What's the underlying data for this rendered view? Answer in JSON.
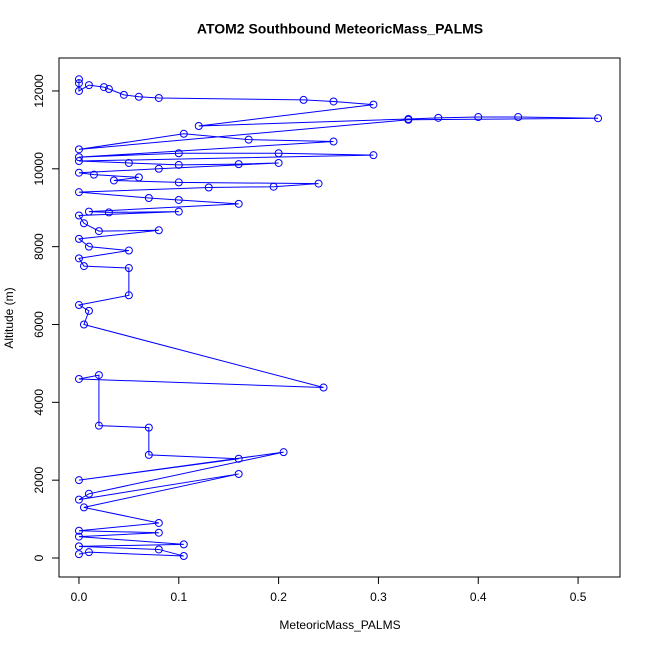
{
  "chart_data": {
    "type": "line",
    "title": "ATOM2 Southbound MeteoricMass_PALMS",
    "x_label": "MeteoricMass_PALMS",
    "y_label": "Altitude (m)",
    "color": "#0000ff",
    "markers": true,
    "x": [
      0,
      0,
      0,
      0.01,
      0.025,
      0.03,
      0.045,
      0.06,
      0.08,
      0.225,
      0.255,
      0.295,
      0.12,
      0.33,
      0.36,
      0.4,
      0.44,
      0.52,
      0.33,
      0,
      0.105,
      0.17,
      0.255,
      0,
      0.1,
      0.2,
      0.295,
      0,
      0.05,
      0.1,
      0.16,
      0.2,
      0.08,
      0,
      0.015,
      0.06,
      0.035,
      0.1,
      0.24,
      0.195,
      0.13,
      0,
      0.07,
      0.1,
      0.16,
      0.01,
      0.03,
      0.1,
      0,
      0.005,
      0.02,
      0.08,
      0,
      0.01,
      0.05,
      0,
      0.005,
      0.05,
      0.05,
      0,
      0.01,
      0.005,
      0.245,
      0,
      0.02,
      0.02,
      0.07,
      0.07,
      0.16,
      0,
      0.205,
      0.01,
      0,
      0.16,
      0.005,
      0.08,
      0,
      0.08,
      0,
      0.105,
      0,
      0.08,
      0.105,
      0.01,
      0
    ],
    "values": [
      12300,
      12200,
      12000,
      12150,
      12100,
      12050,
      11900,
      11850,
      11820,
      11770,
      11730,
      11650,
      11100,
      11280,
      11310,
      11330,
      11330,
      11300,
      11260,
      10500,
      10900,
      10750,
      10700,
      10300,
      10400,
      10400,
      10350,
      10200,
      10150,
      10100,
      10120,
      10150,
      10000,
      9900,
      9850,
      9780,
      9700,
      9650,
      9620,
      9540,
      9520,
      9400,
      9250,
      9200,
      9100,
      8900,
      8880,
      8900,
      8800,
      8600,
      8400,
      8420,
      8200,
      8000,
      7900,
      7700,
      7500,
      7450,
      6750,
      6500,
      6350,
      6000,
      4380,
      4600,
      4700,
      3400,
      3350,
      2650,
      2550,
      2000,
      2720,
      1650,
      1500,
      2160,
      1300,
      900,
      700,
      650,
      550,
      350,
      300,
      220,
      50,
      150,
      100
    ],
    "xlim": [
      -0.02,
      0.542
    ],
    "ylim": [
      -488,
      12847
    ],
    "xticks": [
      {
        "value": 0,
        "label": "0.0"
      },
      {
        "value": 0.1,
        "label": "0.1"
      },
      {
        "value": 0.2,
        "label": "0.2"
      },
      {
        "value": 0.3,
        "label": "0.3"
      },
      {
        "value": 0.4,
        "label": "0.4"
      },
      {
        "value": 0.5,
        "label": "0.5"
      }
    ],
    "yticks": [
      0,
      2000,
      4000,
      6000,
      8000,
      10000,
      12000
    ]
  }
}
